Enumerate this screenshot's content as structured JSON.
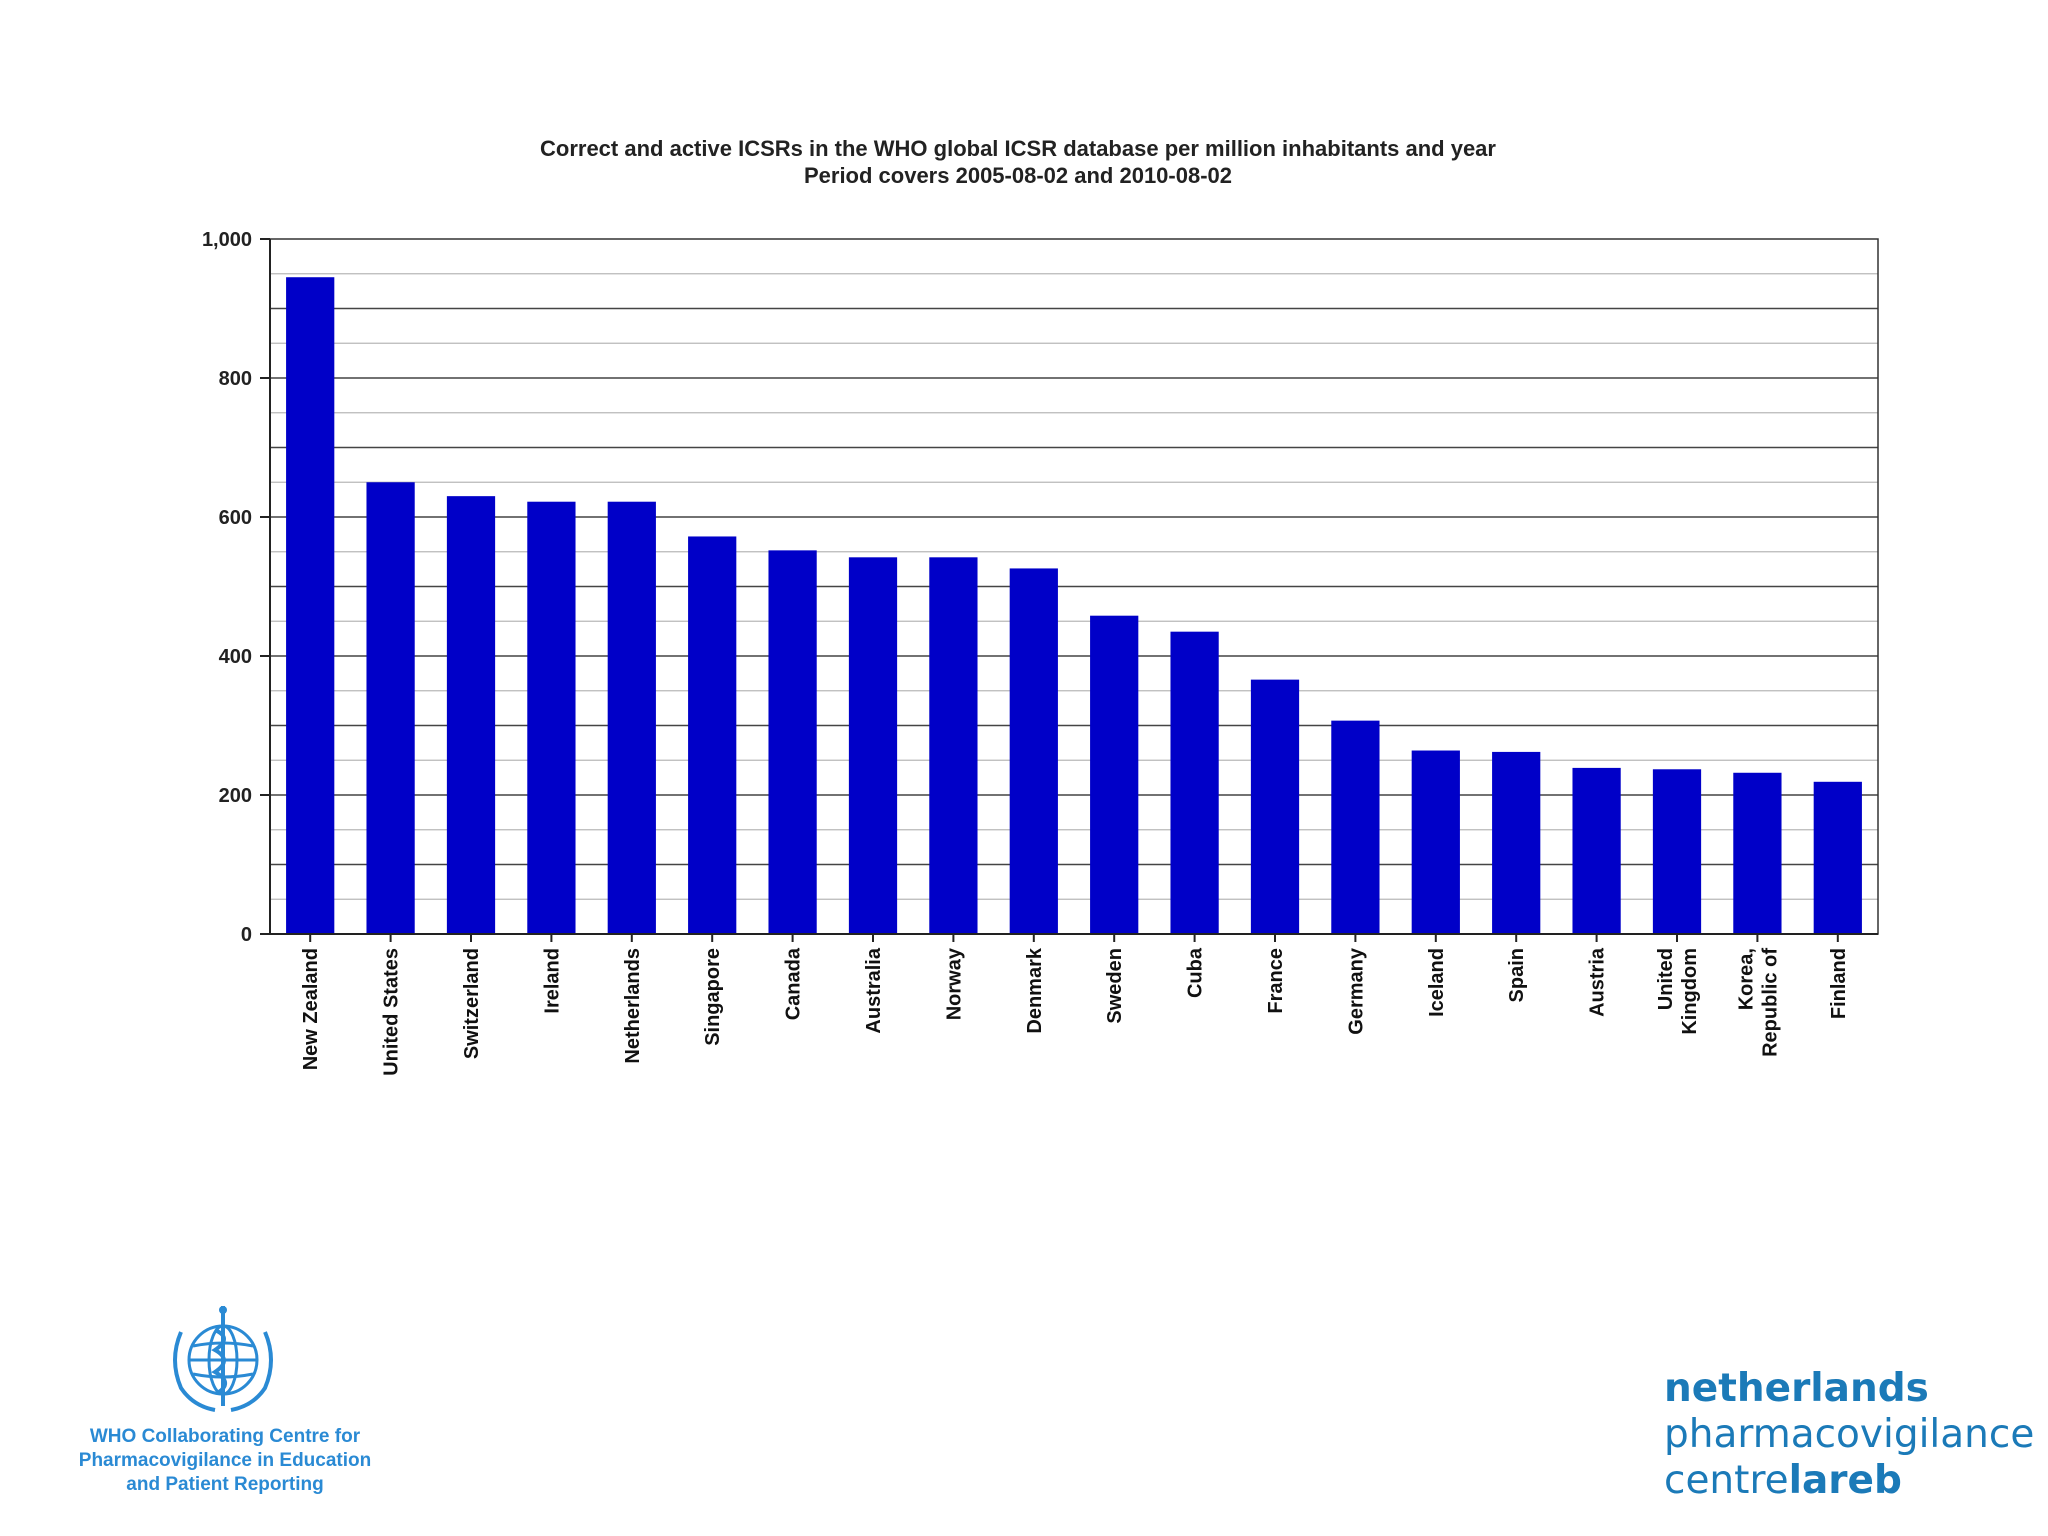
{
  "chart_data": {
    "type": "bar",
    "title": [
      "Correct and active ICSRs in the WHO global ICSR database per million inhabitants and year",
      "Period covers 2005-08-02 and 2010-08-02"
    ],
    "xlabel": "",
    "ylabel": "",
    "ylim": [
      0,
      1000
    ],
    "yticks": [
      {
        "value": 0,
        "label": "0"
      },
      {
        "value": 200,
        "label": "200"
      },
      {
        "value": 400,
        "label": "400"
      },
      {
        "value": 600,
        "label": "600"
      },
      {
        "value": 800,
        "label": "800"
      },
      {
        "value": 1000,
        "label": "1,000"
      }
    ],
    "minor_grid_step": 50,
    "major_grid_step": 100,
    "grid": true,
    "bar_color": "#0000c8",
    "categories": [
      [
        "New Zealand"
      ],
      [
        "United States"
      ],
      [
        "Switzerland"
      ],
      [
        "Ireland"
      ],
      [
        "Netherlands"
      ],
      [
        "Singapore"
      ],
      [
        "Canada"
      ],
      [
        "Australia"
      ],
      [
        "Norway"
      ],
      [
        "Denmark"
      ],
      [
        "Sweden"
      ],
      [
        "Cuba"
      ],
      [
        "France"
      ],
      [
        "Germany"
      ],
      [
        "Iceland"
      ],
      [
        "Spain"
      ],
      [
        "Austria"
      ],
      [
        "United",
        "Kingdom"
      ],
      [
        "Korea,",
        "Republic of"
      ],
      [
        "Finland"
      ]
    ],
    "values": [
      945,
      650,
      630,
      622,
      622,
      572,
      552,
      542,
      542,
      526,
      458,
      435,
      366,
      307,
      264,
      262,
      239,
      237,
      232,
      219
    ]
  },
  "footer": {
    "who_logo_icon": "who-emblem-icon",
    "who_caption": [
      "WHO Collaborating Centre for",
      "Pharmacovigilance in Education",
      "and Patient Reporting"
    ],
    "lareb": {
      "line1": "netherlands",
      "line2": "pharmacovigilance",
      "line3_light": "centre",
      "line3_bold": "lareb"
    },
    "colors": {
      "who_blue": "#2a8ad4",
      "lareb_blue": "#1b7ab8"
    }
  }
}
